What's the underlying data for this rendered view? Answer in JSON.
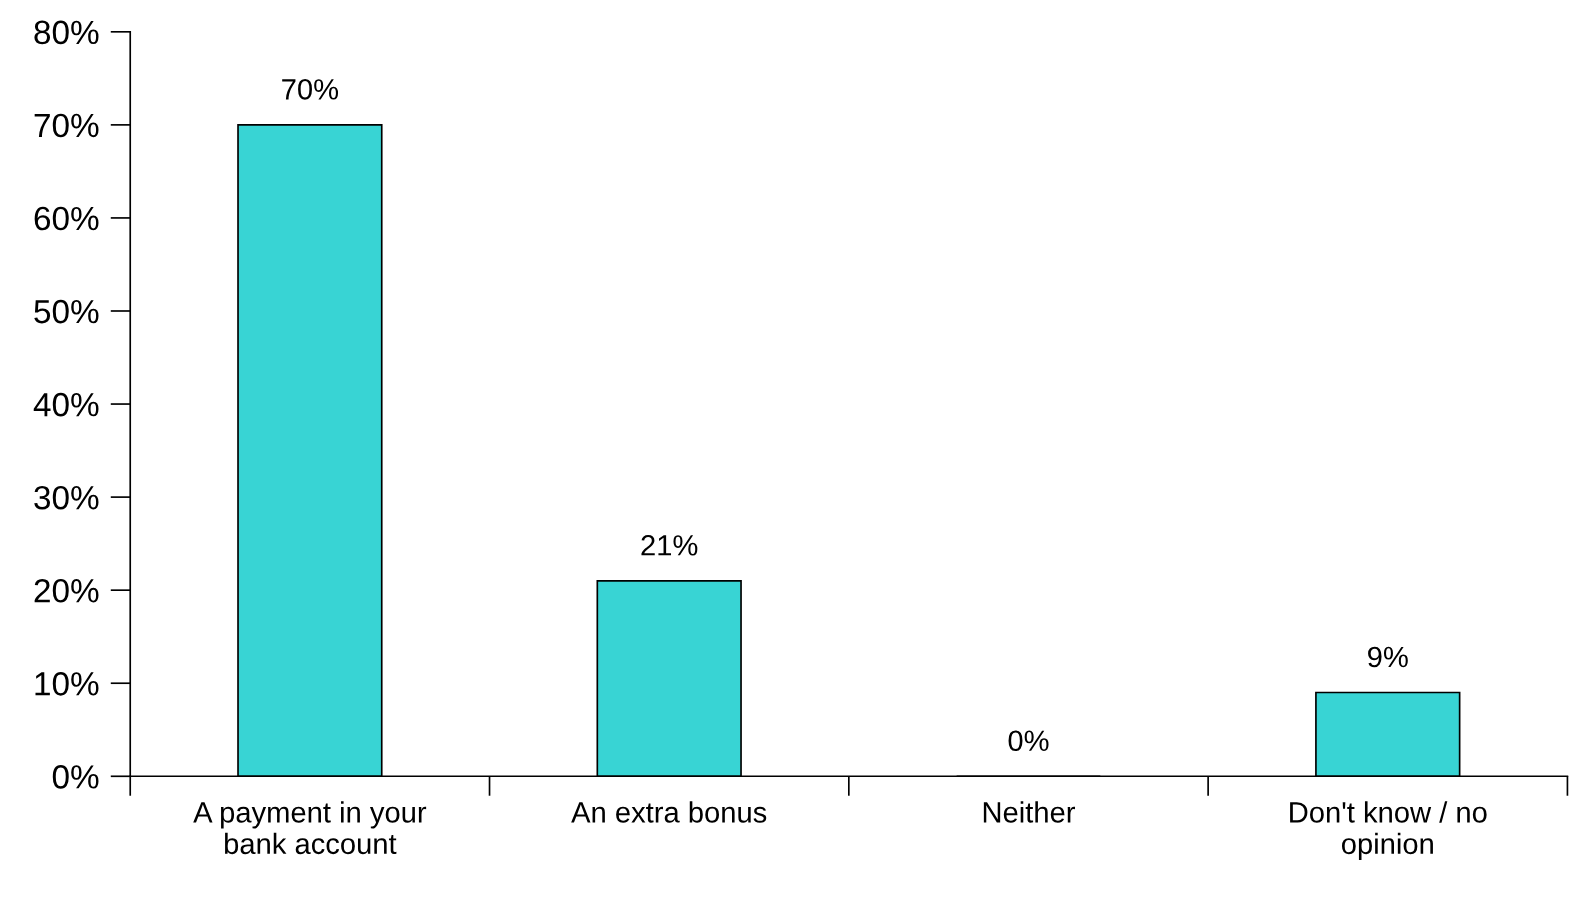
{
  "chart_data": {
    "type": "bar",
    "categories": [
      "A payment in your\nbank account",
      "An extra bonus",
      "Neither",
      "Don't know / no\nopinion"
    ],
    "values": [
      70,
      21,
      0,
      9
    ],
    "value_labels": [
      "70%",
      "21%",
      "0%",
      "9%"
    ],
    "color": "#38d4d4",
    "ylim": [
      0,
      80
    ],
    "yticks": [
      {
        "value": 0,
        "label": "0%"
      },
      {
        "value": 10,
        "label": "10%"
      },
      {
        "value": 20,
        "label": "20%"
      },
      {
        "value": 30,
        "label": "30%"
      },
      {
        "value": 40,
        "label": "40%"
      },
      {
        "value": 50,
        "label": "50%"
      },
      {
        "value": 60,
        "label": "60%"
      },
      {
        "value": 70,
        "label": "70%"
      },
      {
        "value": 80,
        "label": "80%"
      }
    ],
    "grid": false,
    "legend": false
  }
}
